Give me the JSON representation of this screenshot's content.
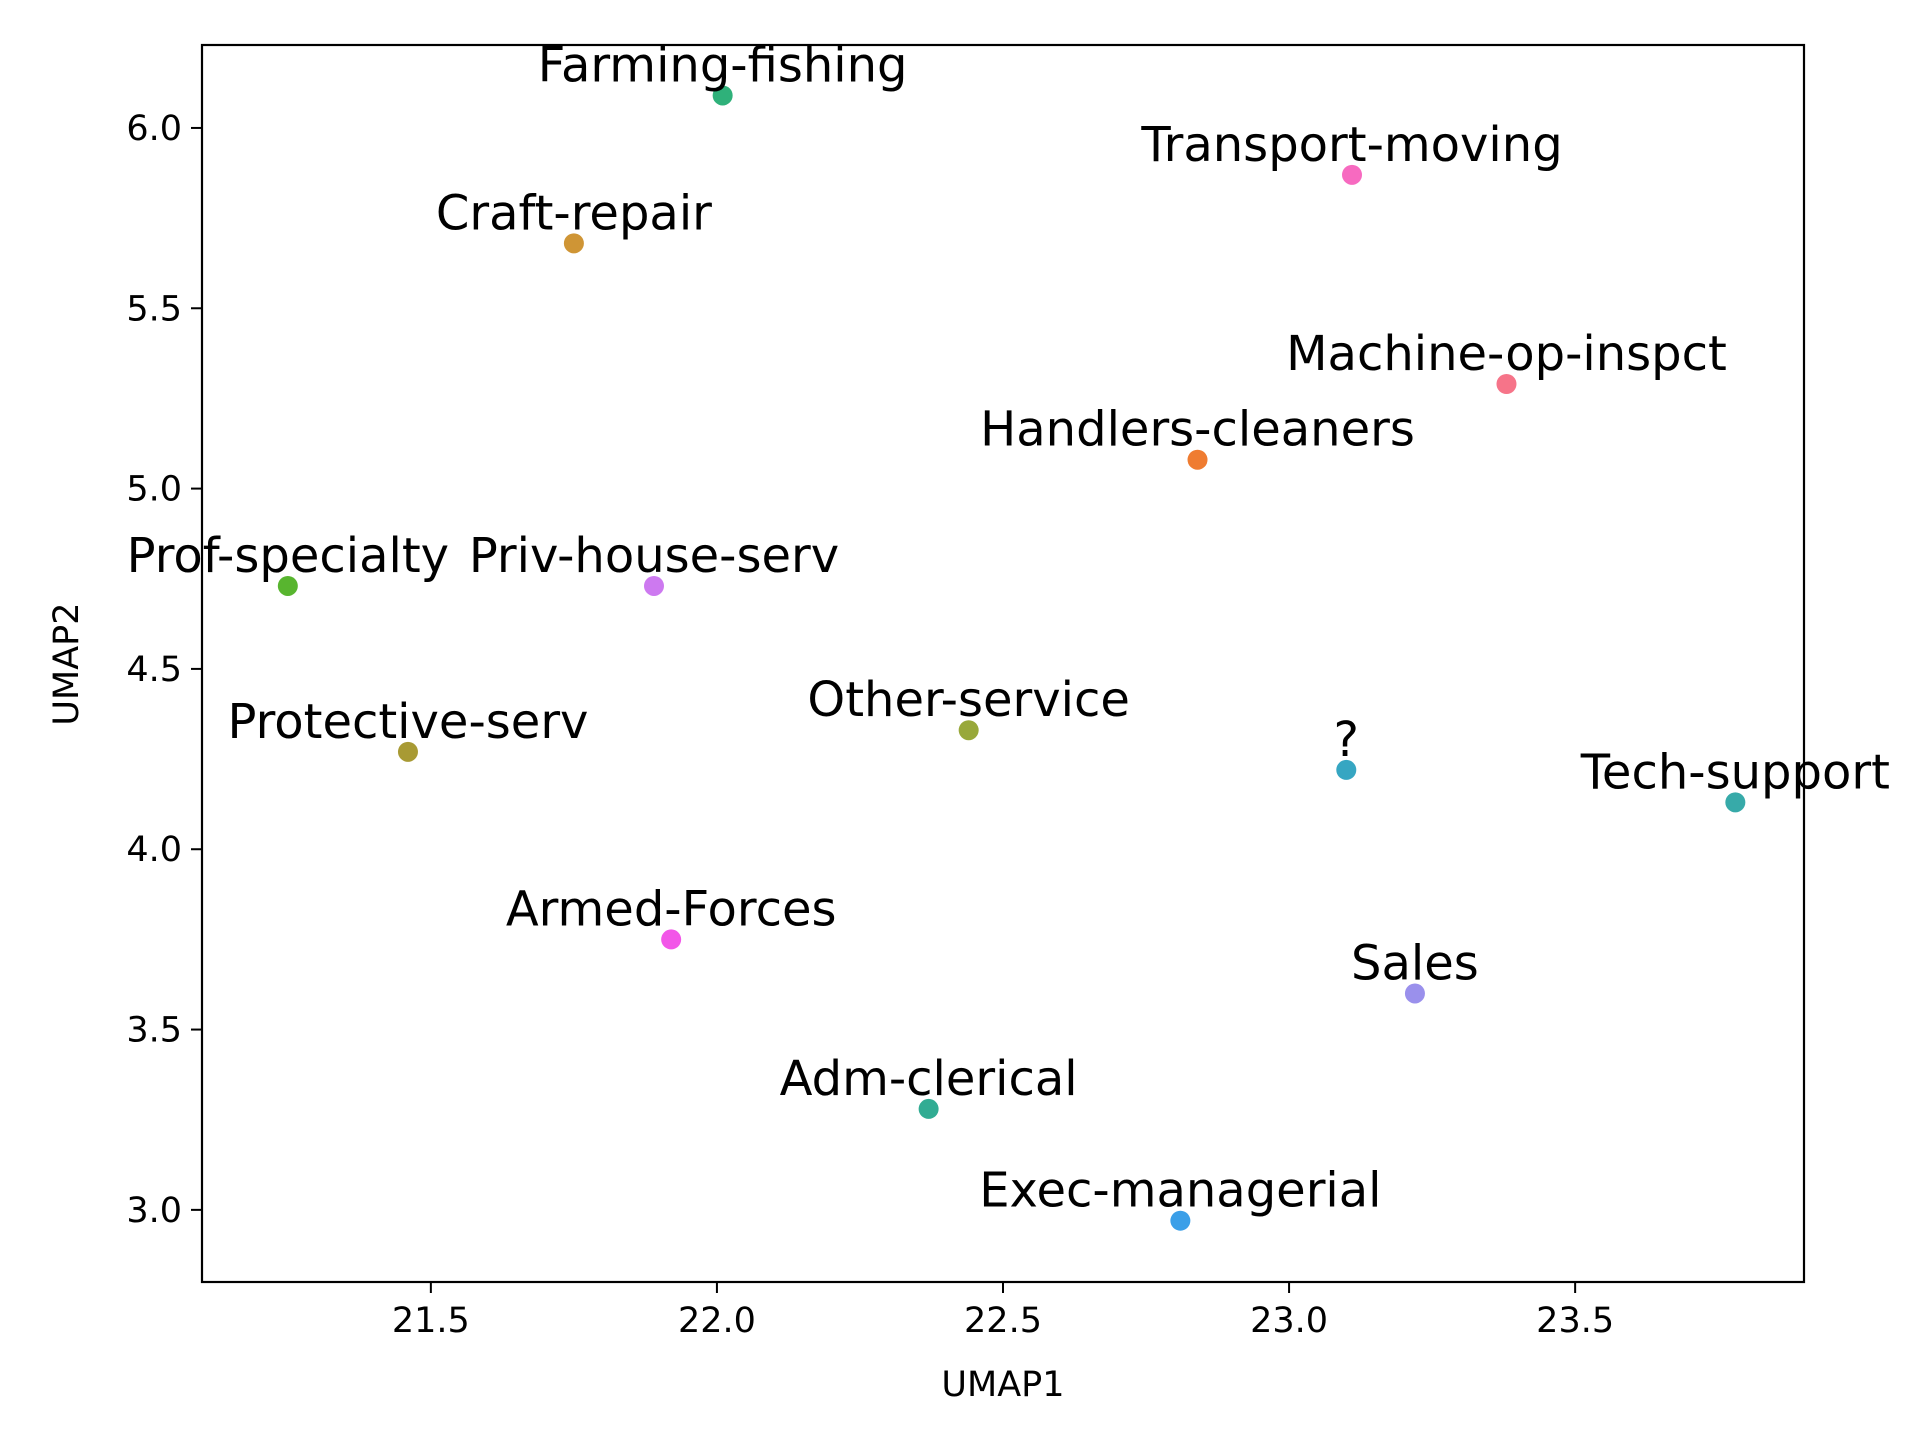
{
  "chart_data": {
    "type": "scatter",
    "title": "",
    "xlabel": "UMAP1",
    "ylabel": "UMAP2",
    "xlim": [
      21.1,
      23.9
    ],
    "ylim": [
      2.8,
      6.23
    ],
    "x_ticks": [
      "21.5",
      "22.0",
      "22.5",
      "23.0",
      "23.5"
    ],
    "y_ticks": [
      "3.0",
      "3.5",
      "4.0",
      "4.5",
      "5.0",
      "5.5",
      "6.0"
    ],
    "grid": false,
    "points": [
      {
        "label": "Farming-fishing",
        "x": 22.01,
        "y": 6.09,
        "color": "#2fb17a"
      },
      {
        "label": "Transport-moving",
        "x": 23.11,
        "y": 5.87,
        "color": "#f76ac0"
      },
      {
        "label": "Craft-repair",
        "x": 21.75,
        "y": 5.68,
        "color": "#cf9535"
      },
      {
        "label": "Machine-op-inspct",
        "x": 23.38,
        "y": 5.29,
        "color": "#f67489"
      },
      {
        "label": "Handlers-cleaners",
        "x": 22.84,
        "y": 5.08,
        "color": "#ef7c31"
      },
      {
        "label": "Prof-specialty",
        "x": 21.25,
        "y": 4.73,
        "color": "#58b52f"
      },
      {
        "label": "Priv-house-serv",
        "x": 21.89,
        "y": 4.73,
        "color": "#cd79f0"
      },
      {
        "label": "Other-service",
        "x": 22.44,
        "y": 4.33,
        "color": "#98a83a"
      },
      {
        "label": "Protective-serv",
        "x": 21.46,
        "y": 4.27,
        "color": "#a89a34"
      },
      {
        "label": "?",
        "x": 23.1,
        "y": 4.22,
        "color": "#36a6c2"
      },
      {
        "label": "Tech-support",
        "x": 23.78,
        "y": 4.13,
        "color": "#37aaa9"
      },
      {
        "label": "Armed-Forces",
        "x": 21.92,
        "y": 3.75,
        "color": "#f256e8"
      },
      {
        "label": "Sales",
        "x": 23.22,
        "y": 3.6,
        "color": "#9a90ec"
      },
      {
        "label": "Adm-clerical",
        "x": 22.37,
        "y": 3.28,
        "color": "#31ac93"
      },
      {
        "label": "Exec-managerial",
        "x": 22.81,
        "y": 2.97,
        "color": "#3b9fe8"
      }
    ]
  }
}
